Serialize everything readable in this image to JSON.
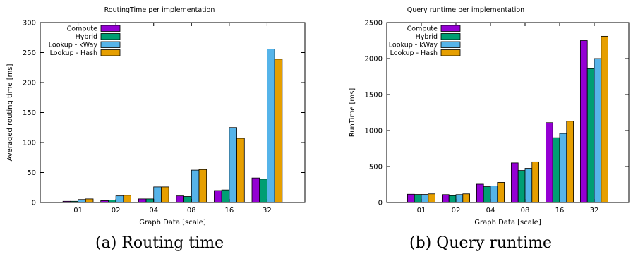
{
  "colors": {
    "Compute": "#9400d3",
    "Hybrid": "#009e73",
    "Lookup - kWay": "#56b4e9",
    "Lookup - Hash": "#e69f00"
  },
  "captions": {
    "a": "(a) Routing time",
    "b": "(b) Query runtime"
  },
  "chart_data": [
    {
      "type": "bar",
      "title": "RoutingTime per implementation",
      "xlabel": "Graph Data [scale]",
      "ylabel": "Averaged routing time [ms]",
      "ylim": [
        0,
        300
      ],
      "yticks": [
        0,
        50,
        100,
        150,
        200,
        250,
        300
      ],
      "categories": [
        "01",
        "02",
        "04",
        "08",
        "16",
        "32"
      ],
      "legend": "top-left",
      "grid": false,
      "series": [
        {
          "name": "Compute",
          "values": [
            2,
            3,
            6,
            11,
            20,
            41
          ]
        },
        {
          "name": "Hybrid",
          "values": [
            2,
            4,
            6,
            10,
            21,
            39
          ]
        },
        {
          "name": "Lookup - kWay",
          "values": [
            5,
            11,
            26,
            54,
            125,
            256
          ]
        },
        {
          "name": "Lookup - Hash",
          "values": [
            6,
            12,
            26,
            55,
            107,
            239
          ]
        }
      ]
    },
    {
      "type": "bar",
      "title": "Query runtime per implementation",
      "xlabel": "Graph Data [scale]",
      "ylabel": "RunTime [ms]",
      "ylim": [
        0,
        2500
      ],
      "yticks": [
        0,
        500,
        1000,
        1500,
        2000,
        2500
      ],
      "categories": [
        "01",
        "02",
        "04",
        "08",
        "16",
        "32"
      ],
      "legend": "top-left",
      "grid": false,
      "series": [
        {
          "name": "Compute",
          "values": [
            115,
            110,
            255,
            550,
            1110,
            2250
          ]
        },
        {
          "name": "Hybrid",
          "values": [
            112,
            95,
            220,
            445,
            900,
            1860
          ]
        },
        {
          "name": "Lookup - kWay",
          "values": [
            112,
            110,
            230,
            475,
            960,
            2000
          ]
        },
        {
          "name": "Lookup - Hash",
          "values": [
            120,
            120,
            280,
            565,
            1130,
            2310
          ]
        }
      ]
    }
  ]
}
